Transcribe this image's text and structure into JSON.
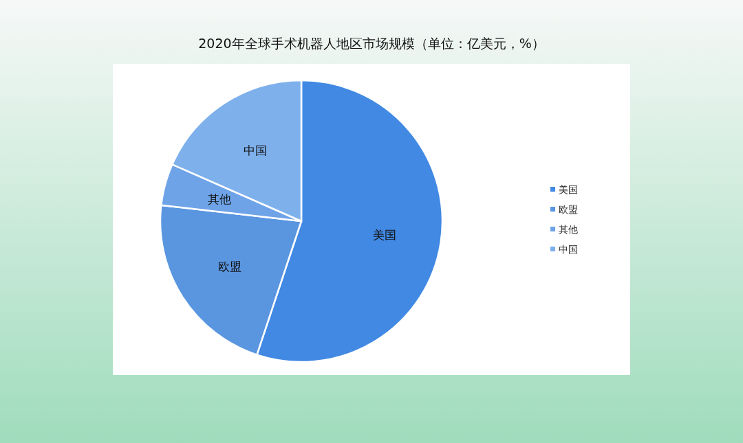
{
  "chart_data": {
    "type": "pie",
    "title": "2020年全球手术机器人地区市场规模（单位：亿美元，%）",
    "categories": [
      "美国",
      "欧盟",
      "其他",
      "中国"
    ],
    "values": [
      55.1,
      21.7,
      4.8,
      18.4
    ],
    "colors": [
      "#4189e3",
      "#5a96e0",
      "#6ea3e8",
      "#7eb0ec"
    ],
    "legend": "right"
  }
}
